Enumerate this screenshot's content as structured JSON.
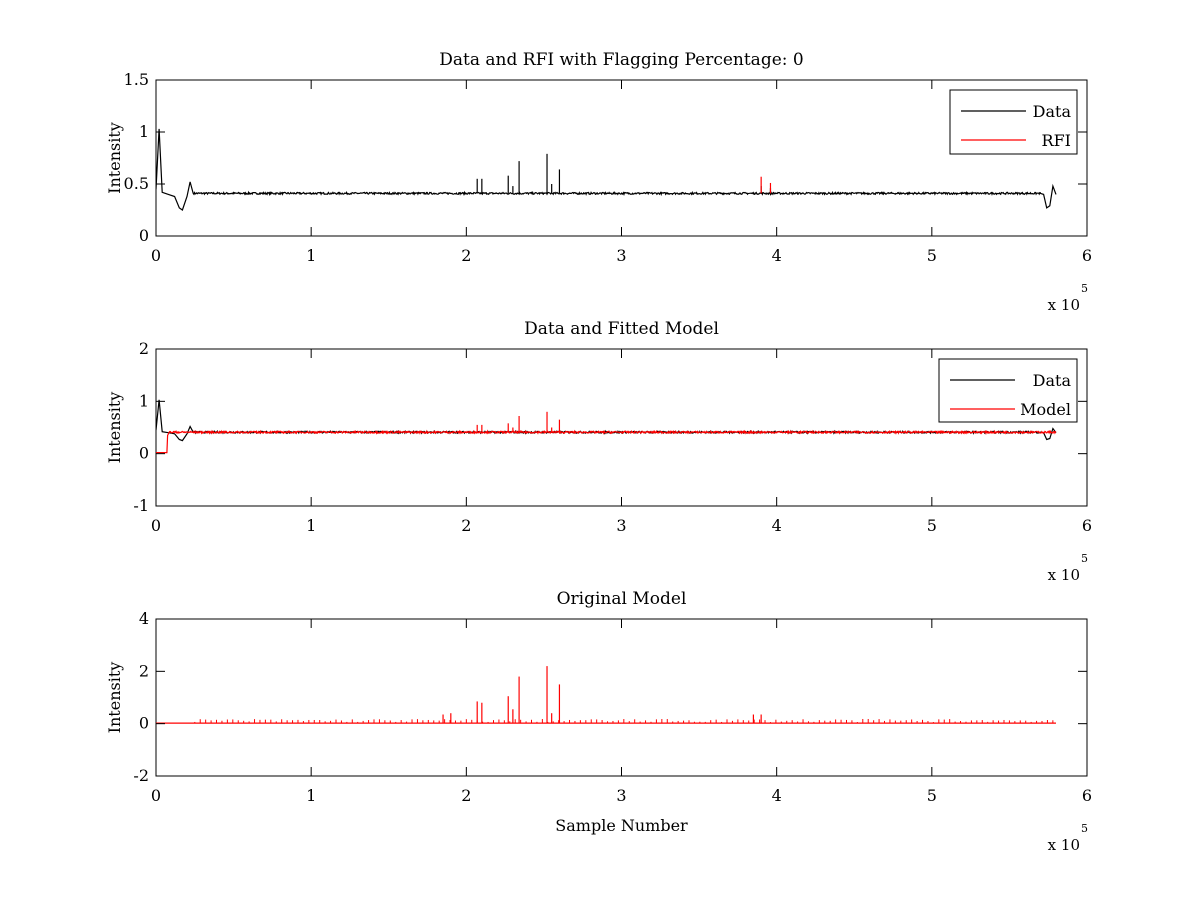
{
  "colors": {
    "data": "#000000",
    "rfi": "#ff0000",
    "model": "#ff0000",
    "axes": "#000000",
    "background": "#ffffff"
  },
  "chart_data": [
    {
      "type": "line",
      "title": "Data and RFI with Flagging Percentage: 0",
      "xlabel": "",
      "ylabel": "Intensity",
      "xlim": [
        0,
        6
      ],
      "ylim": [
        0,
        1.5
      ],
      "x_multiplier": "x 10",
      "x_multiplier_exp": "5",
      "xticks": [
        "0",
        "1",
        "2",
        "3",
        "4",
        "5",
        "6"
      ],
      "yticks": [
        "0",
        "0.5",
        "1",
        "1.5"
      ],
      "legend": {
        "position": "top-right",
        "entries": [
          "Data",
          "RFI"
        ]
      },
      "series": [
        {
          "name": "Data",
          "color": "#000000",
          "baseline": 0.41,
          "x": [
            0,
            0.02,
            0.04,
            0.08,
            0.12,
            0.15,
            0.17,
            0.2,
            0.22,
            0.24,
            5.7,
            5.72,
            5.74,
            5.76,
            5.78,
            5.8
          ],
          "y": [
            0.45,
            1.03,
            0.42,
            0.4,
            0.38,
            0.27,
            0.25,
            0.38,
            0.52,
            0.41,
            0.41,
            0.4,
            0.27,
            0.29,
            0.48,
            0.4
          ],
          "spikes": [
            [
              2.07,
              0.55
            ],
            [
              2.1,
              0.55
            ],
            [
              2.27,
              0.58
            ],
            [
              2.3,
              0.48
            ],
            [
              2.34,
              0.72
            ],
            [
              2.52,
              0.79
            ],
            [
              2.55,
              0.5
            ],
            [
              2.6,
              0.64
            ],
            [
              3.9,
              0.48
            ],
            [
              3.96,
              0.46
            ]
          ]
        },
        {
          "name": "RFI",
          "color": "#ff0000",
          "spikes": [
            [
              3.9,
              0.57
            ],
            [
              3.96,
              0.51
            ]
          ]
        }
      ]
    },
    {
      "type": "line",
      "title": "Data and Fitted Model",
      "xlabel": "",
      "ylabel": "Intensity",
      "xlim": [
        0,
        6
      ],
      "ylim": [
        -1,
        2
      ],
      "x_multiplier": "x 10",
      "x_multiplier_exp": "5",
      "xticks": [
        "0",
        "1",
        "2",
        "3",
        "4",
        "5",
        "6"
      ],
      "yticks": [
        "-1",
        "0",
        "1",
        "2"
      ],
      "legend": {
        "position": "top-right",
        "entries": [
          "Data",
          "Model"
        ]
      },
      "series": [
        {
          "name": "Data",
          "color": "#000000",
          "baseline": 0.41,
          "x": [
            0,
            0.02,
            0.04,
            0.08,
            0.12,
            0.15,
            0.17,
            0.2,
            0.22,
            0.24,
            5.7,
            5.72,
            5.74,
            5.76,
            5.78,
            5.8
          ],
          "y": [
            0.45,
            1.03,
            0.42,
            0.4,
            0.38,
            0.27,
            0.25,
            0.38,
            0.52,
            0.41,
            0.41,
            0.4,
            0.27,
            0.29,
            0.48,
            0.4
          ]
        },
        {
          "name": "Model",
          "color": "#ff0000",
          "baseline": 0.41,
          "x": [
            0,
            0.07,
            0.075,
            0.085,
            5.8
          ],
          "y": [
            0.02,
            0.02,
            0.35,
            0.41,
            0.41
          ],
          "spikes": [
            [
              2.07,
              0.55
            ],
            [
              2.1,
              0.55
            ],
            [
              2.27,
              0.58
            ],
            [
              2.3,
              0.5
            ],
            [
              2.34,
              0.72
            ],
            [
              2.52,
              0.8
            ],
            [
              2.55,
              0.5
            ],
            [
              2.6,
              0.65
            ]
          ]
        }
      ]
    },
    {
      "type": "line",
      "title": "Original Model",
      "xlabel": "Sample Number",
      "ylabel": "Intensity",
      "xlim": [
        0,
        6
      ],
      "ylim": [
        -2,
        4
      ],
      "x_multiplier": "x 10",
      "x_multiplier_exp": "5",
      "xticks": [
        "0",
        "1",
        "2",
        "3",
        "4",
        "5",
        "6"
      ],
      "yticks": [
        "-2",
        "0",
        "2",
        "4"
      ],
      "series": [
        {
          "name": "",
          "color": "#ff0000",
          "baseline": 0.02,
          "spikes": [
            [
              2.07,
              0.85
            ],
            [
              2.1,
              0.8
            ],
            [
              2.27,
              1.05
            ],
            [
              2.3,
              0.55
            ],
            [
              2.34,
              1.8
            ],
            [
              2.52,
              2.2
            ],
            [
              2.55,
              0.4
            ],
            [
              2.6,
              1.5
            ],
            [
              1.85,
              0.35
            ],
            [
              1.9,
              0.4
            ],
            [
              3.85,
              0.35
            ],
            [
              3.9,
              0.35
            ]
          ]
        }
      ]
    }
  ]
}
